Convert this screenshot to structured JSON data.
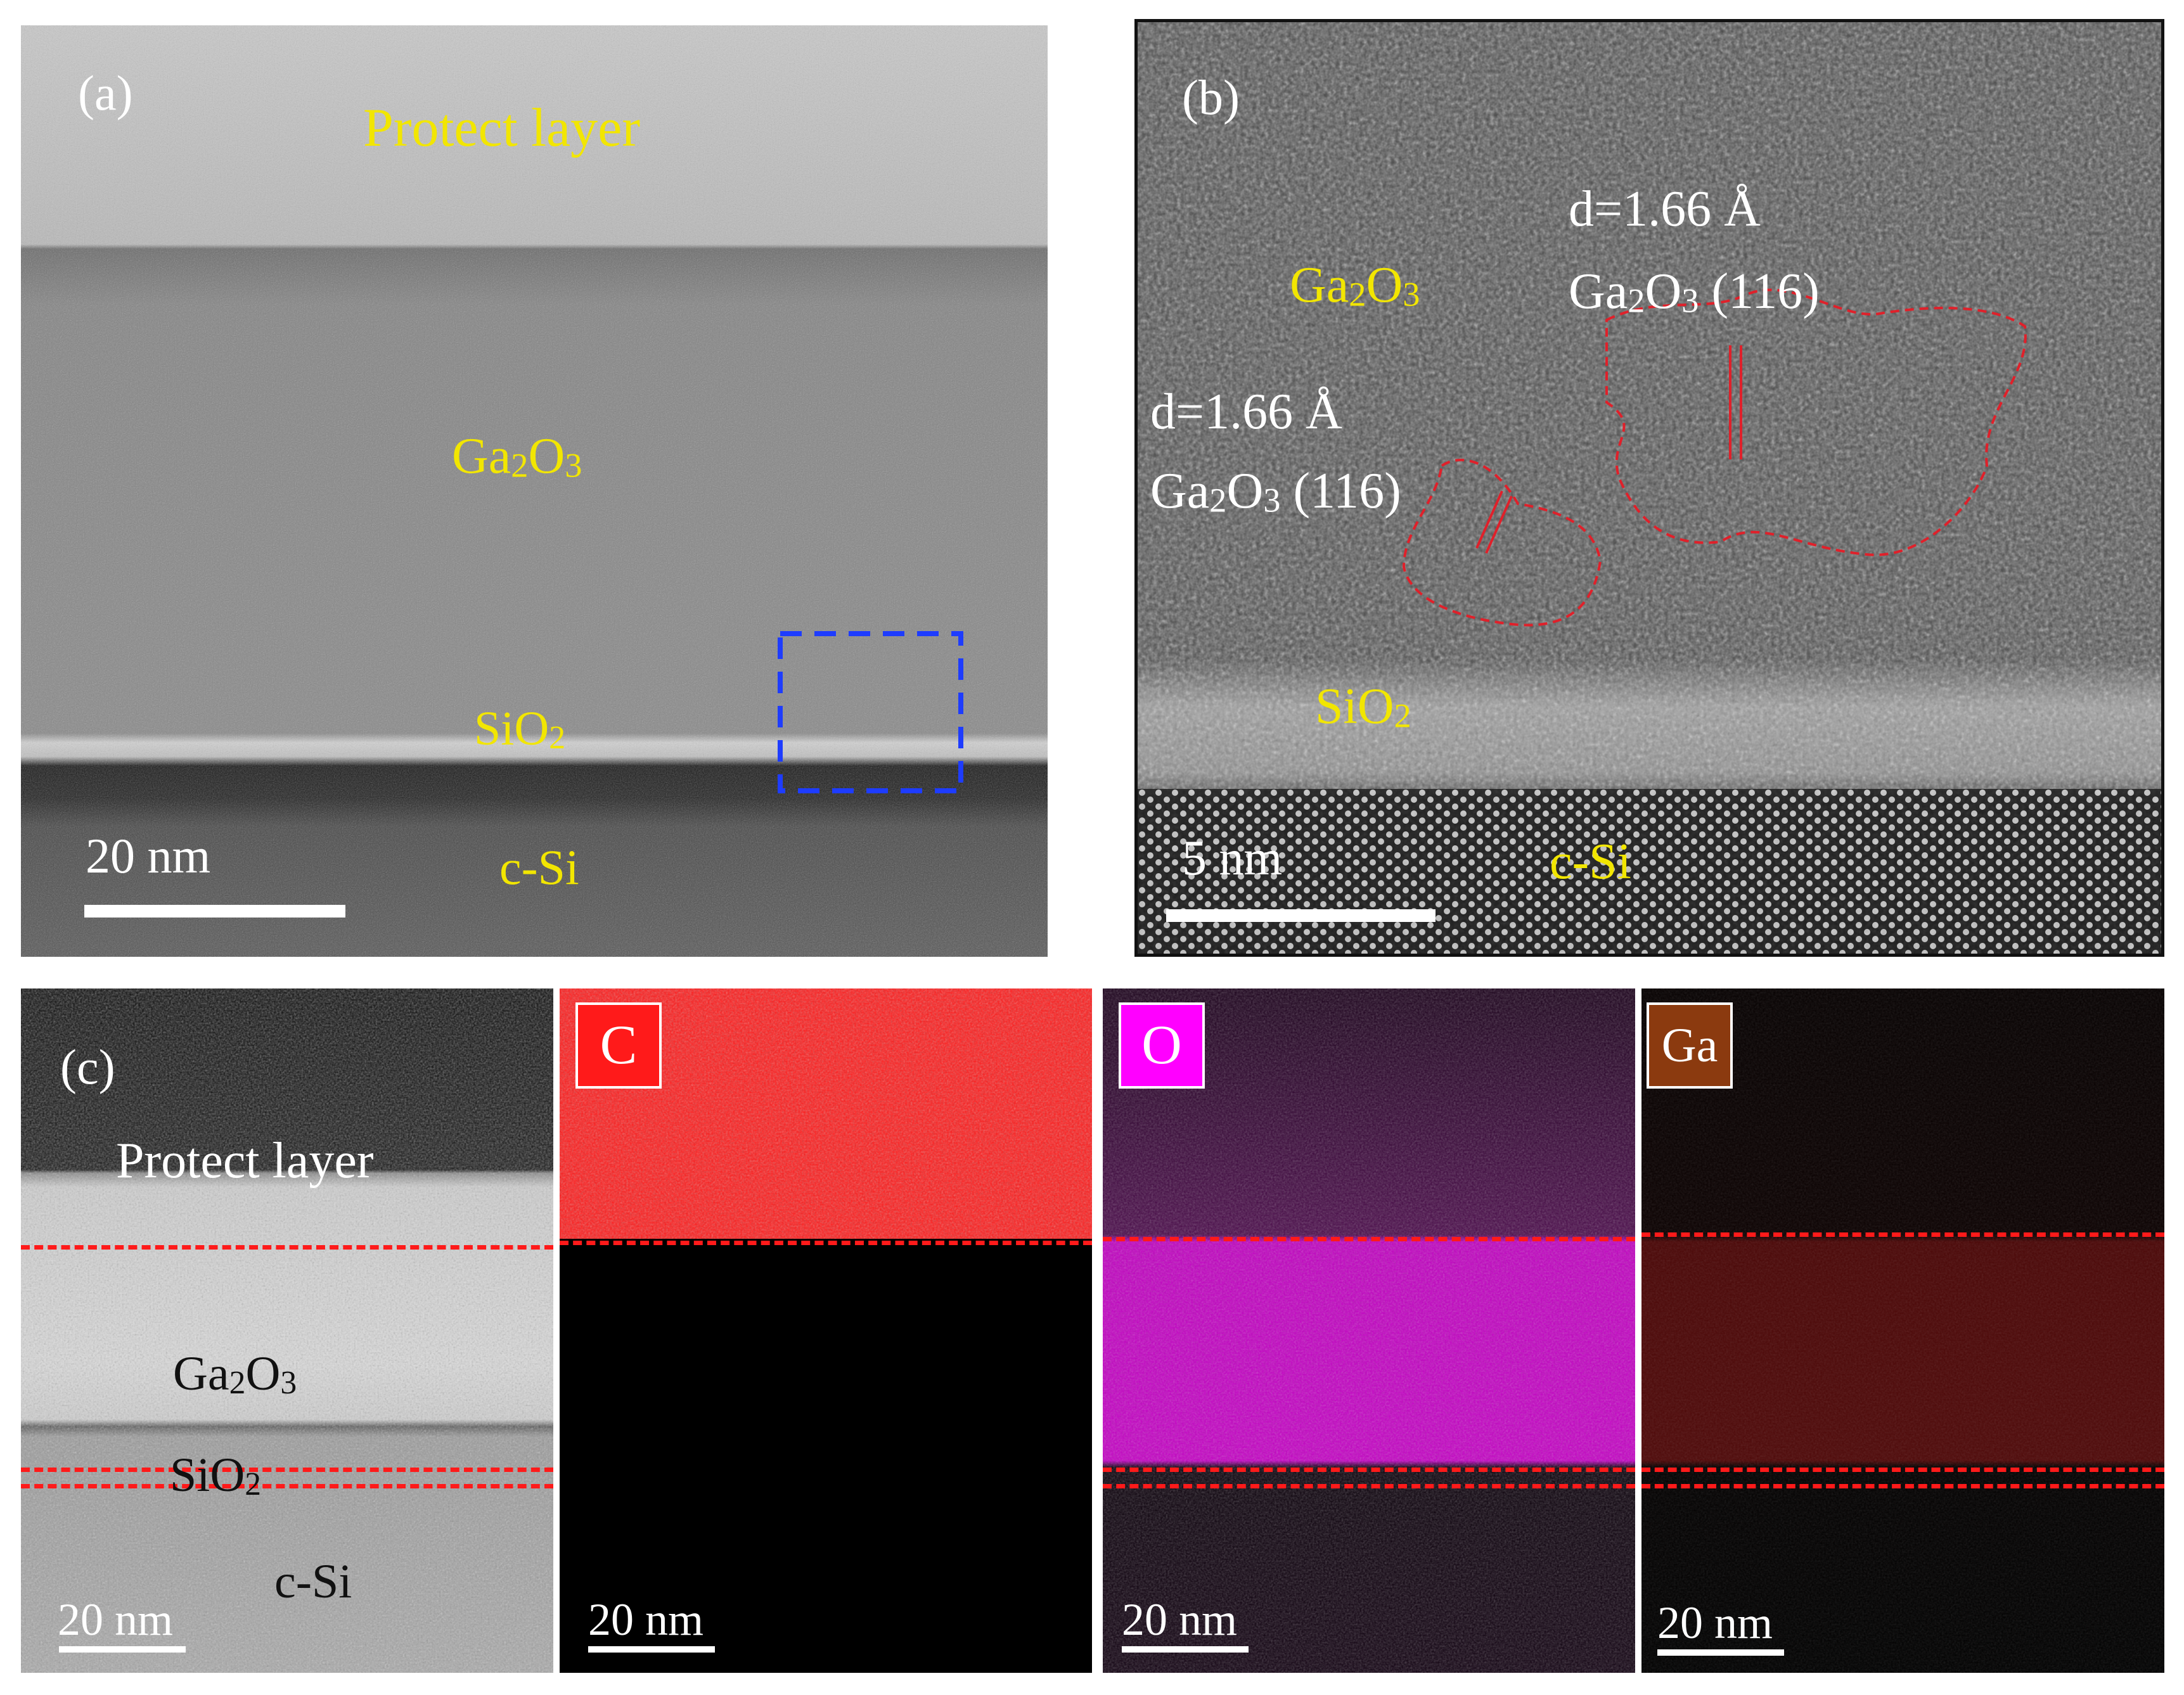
{
  "panel_a": {
    "label": "(a)",
    "layers": {
      "protect": "Protect layer",
      "ga2o3": "Ga",
      "sio2": "SiO",
      "csi": "c-Si"
    },
    "scale_bar": "20 nm",
    "colors": {
      "text": "#f2e600",
      "roi_box": "#1e3cff"
    }
  },
  "panel_b": {
    "label": "(b)",
    "ga2o3": "Ga",
    "annotation_right": {
      "d": "d=1.66 Å",
      "plane": "(116)"
    },
    "annotation_left": {
      "d": "d=1.66 Å",
      "plane": "(116)"
    },
    "sio2": "SiO",
    "csi": "c-Si",
    "scale_bar": "5 nm",
    "colors": {
      "grain_outline": "#e0202a"
    }
  },
  "panel_c": {
    "label": "(c)",
    "layers": {
      "protect": "Protect layer",
      "ga2o3": "Ga",
      "sio2": "SiO",
      "csi": "c-Si"
    },
    "scale_bar": "20 nm",
    "maps": [
      {
        "element": "C",
        "scale_bar": "20 nm",
        "color": "#ff1a1a"
      },
      {
        "element": "O",
        "scale_bar": "20 nm",
        "color": "#ff00ff"
      },
      {
        "element": "Ga",
        "scale_bar": "20 nm",
        "color": "#8b3a0f"
      }
    ],
    "colors": {
      "boundary_dash": "#ff1a1a"
    }
  }
}
